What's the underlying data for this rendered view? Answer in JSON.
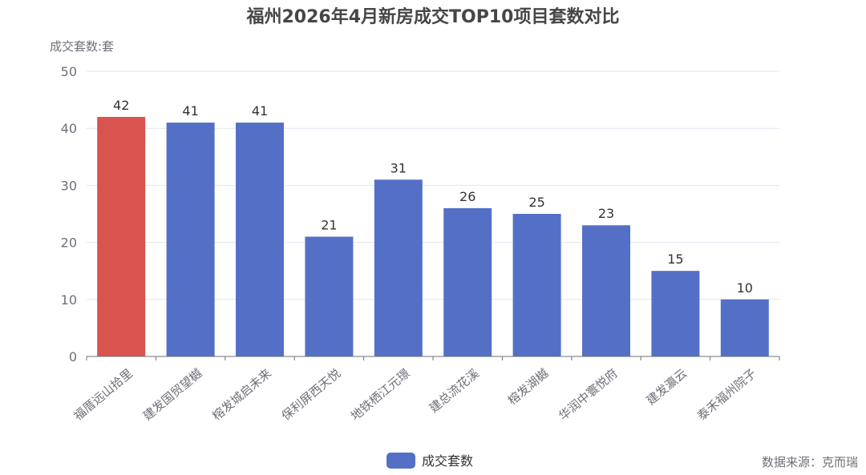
{
  "chart_data": {
    "type": "bar",
    "title": "福州2026年4月新房成交TOP10项目套数对比",
    "ylabel": "成交套数:套",
    "xlabel": "",
    "categories": [
      "福厝远山拾里",
      "建发国贸望樾",
      "榕发城启未来",
      "保利屏西天悦",
      "地铁栖江元璟",
      "建总流花溪",
      "榕发湖樾",
      "华润中寰悦府",
      "建发瀛云",
      "泰禾福州院子"
    ],
    "series": [
      {
        "name": "成交套数",
        "values": [
          42,
          41,
          41,
          21,
          31,
          26,
          25,
          23,
          15,
          10
        ]
      }
    ],
    "ylim": [
      0,
      50
    ],
    "yticks": [
      0,
      10,
      20,
      30,
      40,
      50
    ],
    "highlight_index": 0,
    "colors": {
      "bar": "#5470c6",
      "highlight": "#d9534f",
      "grid": "#e0e6f1",
      "axis": "#6e7079"
    },
    "grid": true,
    "legend_position": "bottom-center",
    "data_labels": true
  },
  "source_text": "数据来源：克而瑞"
}
